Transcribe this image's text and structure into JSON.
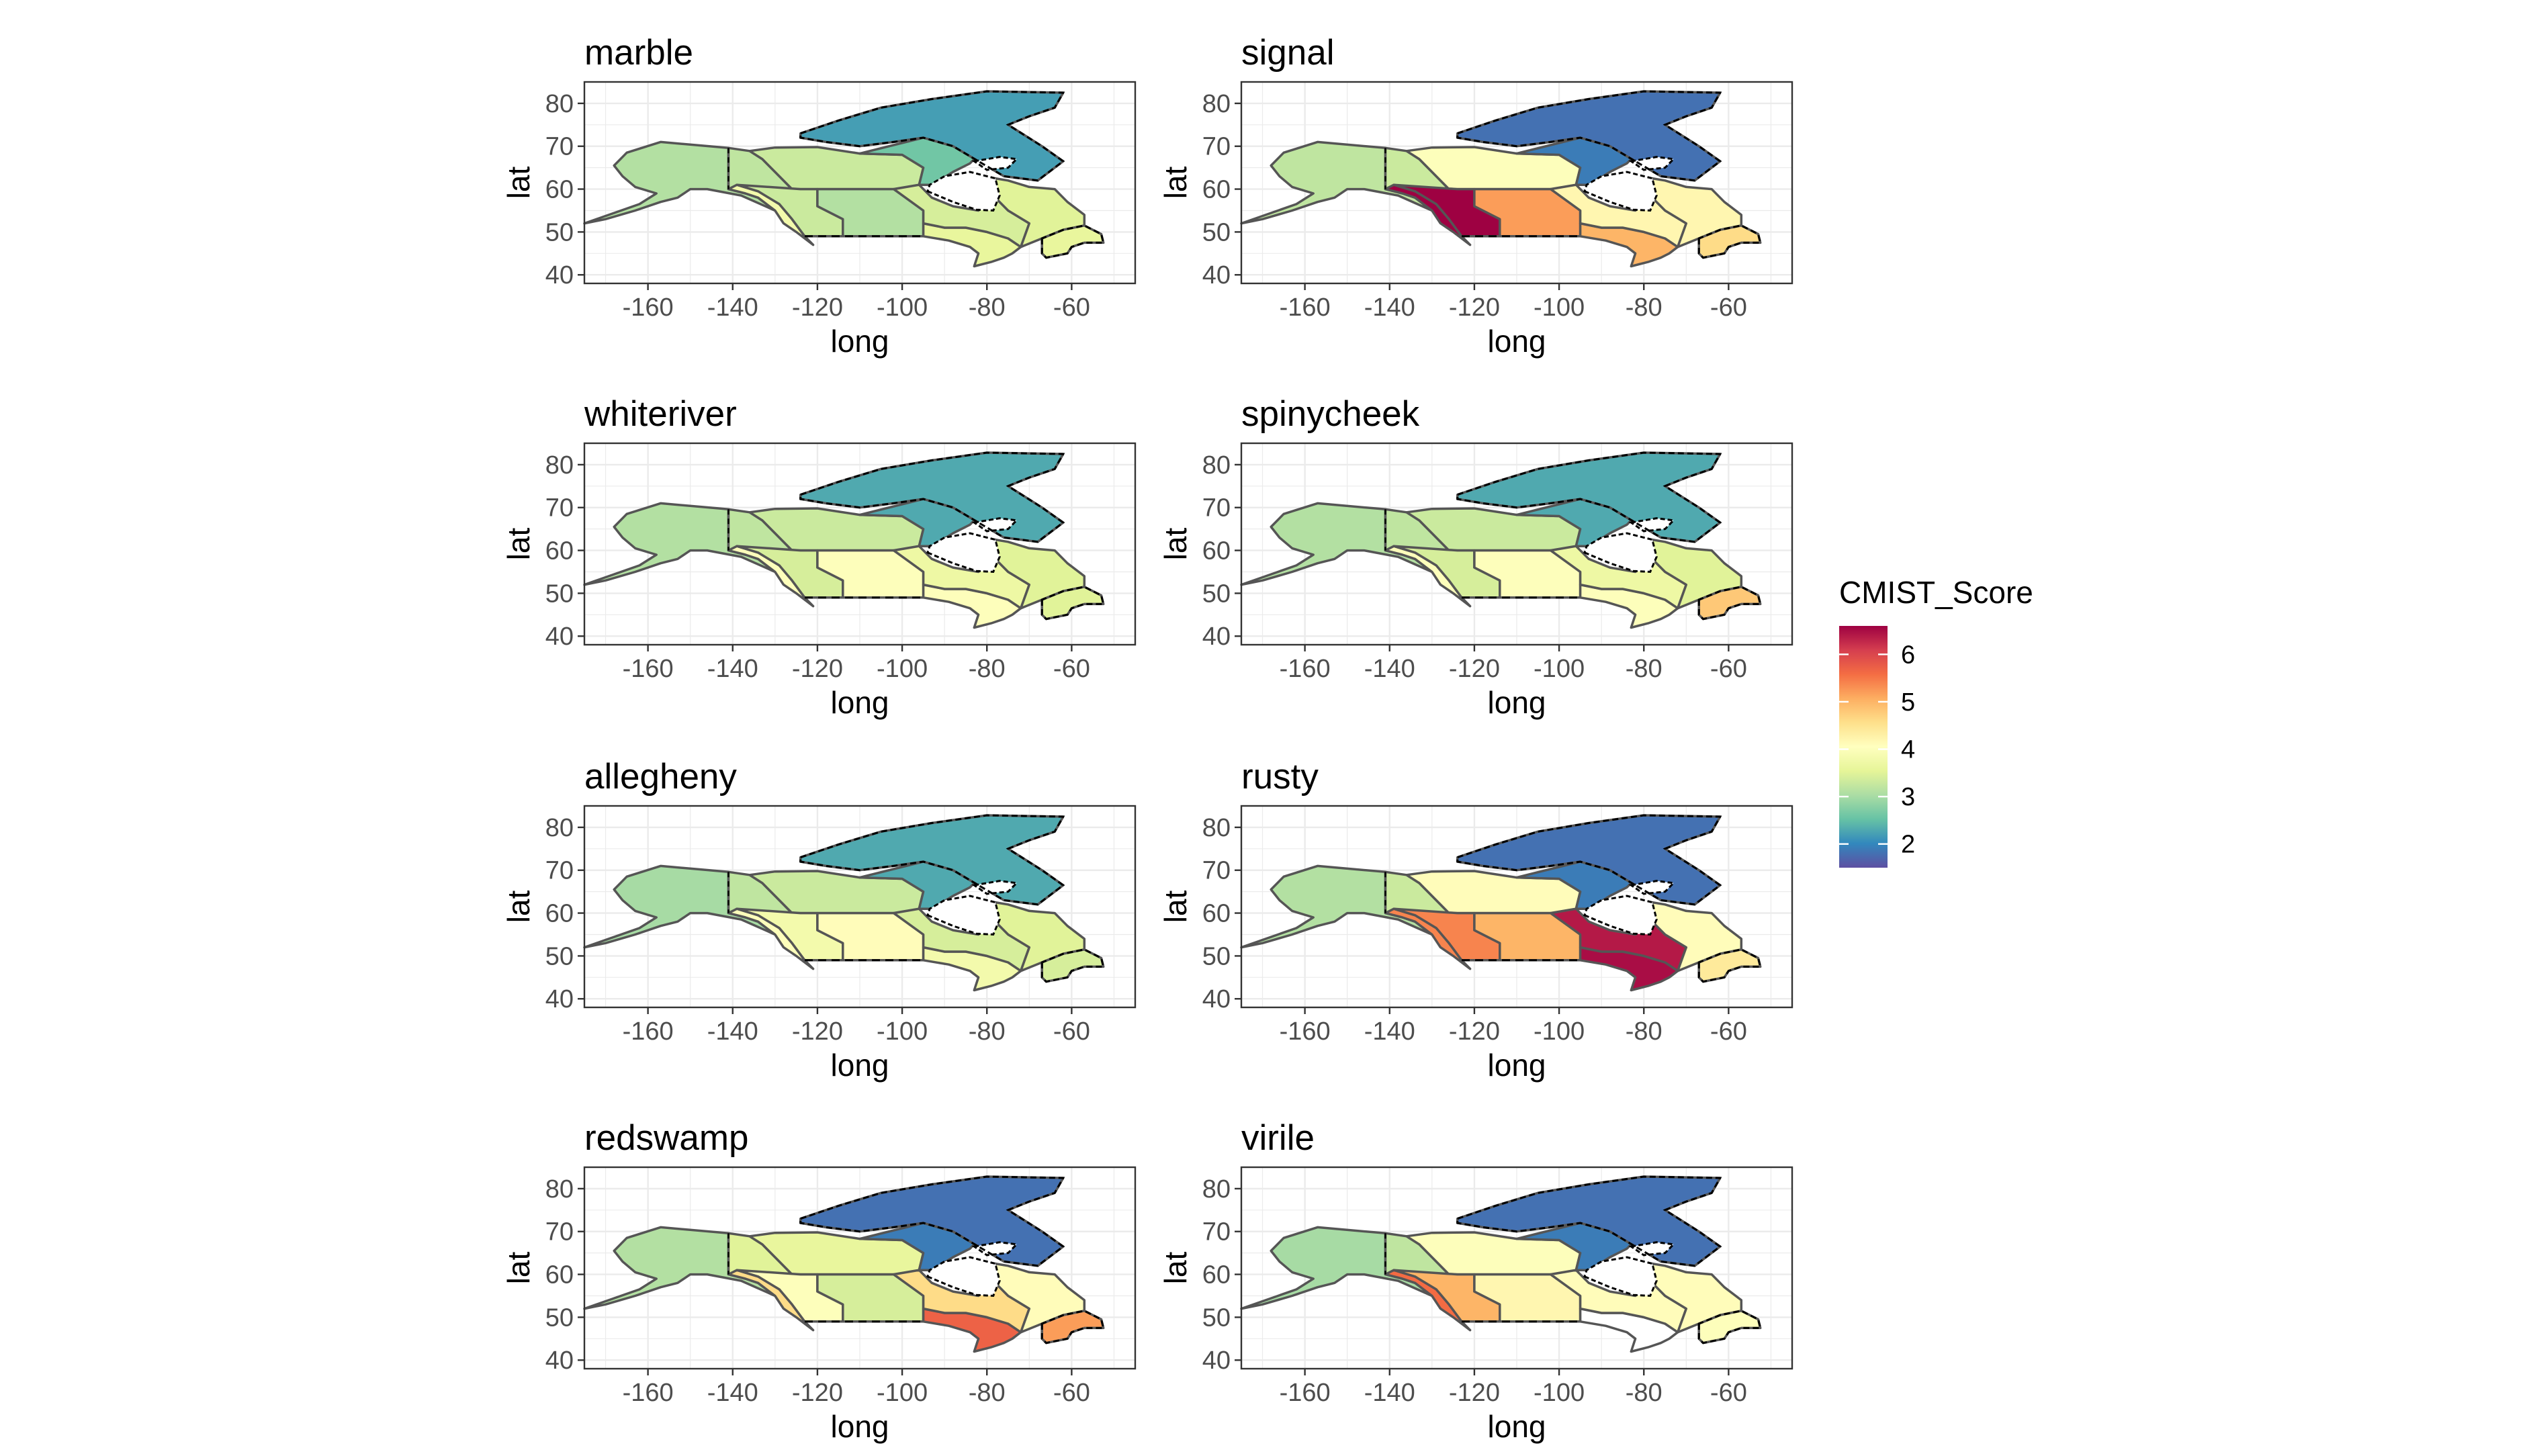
{
  "chart_data": {
    "type": "heatmap",
    "subtype": "faceted choropleth map",
    "x_label": "long",
    "y_label": "lat",
    "x_ticks": [
      -160,
      -140,
      -120,
      -100,
      -80,
      -60
    ],
    "y_ticks": [
      40,
      50,
      60,
      70,
      80
    ],
    "xlim": [
      -175,
      -45
    ],
    "ylim": [
      38,
      85
    ],
    "legend": {
      "title": "CMIST_Score",
      "ticks": [
        2,
        3,
        4,
        5,
        6
      ],
      "range": [
        1.5,
        6.6
      ],
      "palette": "Spectral (reversed)",
      "colors": [
        "#5e4fa2",
        "#3288bd",
        "#66c2a5",
        "#abdda4",
        "#e6f598",
        "#ffffbf",
        "#fee08b",
        "#fdae61",
        "#f46d43",
        "#d53e4f",
        "#9e0142"
      ],
      "placement": "right"
    },
    "grid": true,
    "facets": [
      {
        "name": "marble",
        "scores": {
          "arctic_islands": 2.2,
          "hudson": 2.6,
          "alaska": 3.1,
          "yukon": 3.2,
          "north": 3.3,
          "pacific_coast": 3.8,
          "bc_interior": 3.3,
          "prairies": 3.1,
          "great_lakes": 3.6,
          "central": 3.4,
          "quebec": 3.5,
          "maritimes": 3.6
        }
      },
      {
        "name": "signal",
        "scores": {
          "arctic_islands": 1.8,
          "hudson": 1.9,
          "alaska": 3.2,
          "yukon": 3.3,
          "north": 4.0,
          "pacific_coast": 6.6,
          "bc_interior": 6.6,
          "prairies": 5.2,
          "great_lakes": 5.0,
          "central": 4.2,
          "quebec": 4.2,
          "maritimes": 4.6
        }
      },
      {
        "name": "whiteriver",
        "scores": {
          "arctic_islands": 2.3,
          "hudson": 2.3,
          "alaska": 3.1,
          "yukon": 3.2,
          "north": 3.3,
          "pacific_coast": 4.0,
          "bc_interior": 3.4,
          "prairies": 4.0,
          "great_lakes": 4.0,
          "central": 3.7,
          "quebec": 3.5,
          "maritimes": 3.5
        }
      },
      {
        "name": "spinycheek",
        "scores": {
          "arctic_islands": 2.3,
          "hudson": 2.3,
          "alaska": 3.1,
          "yukon": 3.2,
          "north": 3.3,
          "pacific_coast": 4.0,
          "bc_interior": 3.4,
          "prairies": 4.0,
          "great_lakes": 4.0,
          "central": 3.7,
          "quebec": 3.5,
          "maritimes": 4.8
        }
      },
      {
        "name": "allegheny",
        "scores": {
          "arctic_islands": 2.3,
          "hudson": 2.3,
          "alaska": 3.0,
          "yukon": 3.2,
          "north": 3.3,
          "pacific_coast": 4.0,
          "bc_interior": 3.8,
          "prairies": 4.1,
          "great_lakes": 3.8,
          "central": 3.4,
          "quebec": 3.5,
          "maritimes": 3.4
        }
      },
      {
        "name": "rusty",
        "scores": {
          "arctic_islands": 1.8,
          "hudson": 1.9,
          "alaska": 3.1,
          "yukon": 3.3,
          "north": 4.1,
          "pacific_coast": 5.4,
          "bc_interior": 5.4,
          "prairies": 5.0,
          "great_lakes": 6.5,
          "central": 6.4,
          "quebec": 4.1,
          "maritimes": 4.4
        }
      },
      {
        "name": "redswamp",
        "scores": {
          "arctic_islands": 1.8,
          "hudson": 1.9,
          "alaska": 3.1,
          "yukon": 3.5,
          "north": 3.6,
          "pacific_coast": 4.6,
          "bc_interior": 4.0,
          "prairies": 3.4,
          "great_lakes": 5.7,
          "central": 4.6,
          "quebec": 4.1,
          "maritimes": 5.2
        }
      },
      {
        "name": "virile",
        "scores": {
          "arctic_islands": 1.8,
          "hudson": 1.9,
          "alaska": 3.0,
          "yukon": 3.2,
          "north": 4.0,
          "pacific_coast": 5.6,
          "bc_interior": 5.0,
          "prairies": 4.2,
          "great_lakes": null,
          "central": 4.1,
          "quebec": 4.1,
          "maritimes": 4.0
        }
      }
    ]
  }
}
